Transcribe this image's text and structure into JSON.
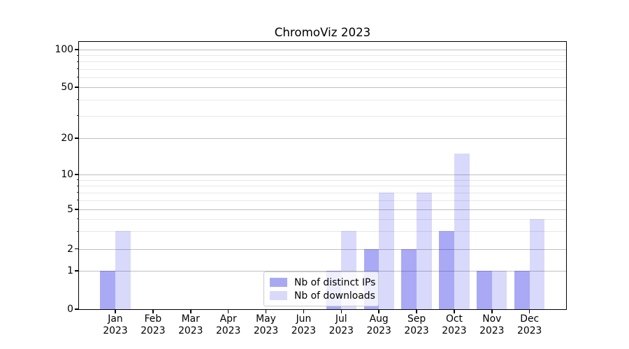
{
  "figure": {
    "title": "ChromoViz 2023",
    "background": "#ffffff"
  },
  "chart_data": {
    "type": "bar",
    "title": "ChromoViz 2023",
    "xlabel": "",
    "ylabel": "",
    "yscale": "log-like (0 shown at baseline)",
    "ylim": [
      0,
      100
    ],
    "yticks": [
      0,
      1,
      2,
      5,
      10,
      20,
      50,
      100
    ],
    "yticks_minor": [
      3,
      4,
      6,
      7,
      8,
      9,
      30,
      40,
      60,
      70,
      80,
      90
    ],
    "grid": "horizontal major and minor gridlines",
    "legend_position": "lower center",
    "categories": [
      "Jan 2023",
      "Feb 2023",
      "Mar 2023",
      "Apr 2023",
      "May 2023",
      "Jun 2023",
      "Jul 2023",
      "Aug 2023",
      "Sep 2023",
      "Oct 2023",
      "Nov 2023",
      "Dec 2023"
    ],
    "x_tick_line1": [
      "Jan",
      "Feb",
      "Mar",
      "Apr",
      "May",
      "Jun",
      "Jul",
      "Aug",
      "Sep",
      "Oct",
      "Nov",
      "Dec"
    ],
    "x_tick_line2": [
      "2023",
      "2023",
      "2023",
      "2023",
      "2023",
      "2023",
      "2023",
      "2023",
      "2023",
      "2023",
      "2023",
      "2023"
    ],
    "series": [
      {
        "name": "Nb of distinct IPs",
        "color": "#a9a9f2",
        "fill_rgba": "rgba(10,10,230,0.35)",
        "values": [
          1,
          0,
          0,
          0,
          0,
          0,
          1,
          2,
          2,
          3,
          1,
          1
        ]
      },
      {
        "name": "Nb of downloads",
        "color": "#d9d9f9",
        "fill_rgba": "rgba(10,10,230,0.155)",
        "values": [
          3,
          0,
          0,
          0,
          0,
          0,
          3,
          7,
          7,
          15,
          1,
          4
        ]
      }
    ]
  },
  "legend": {
    "items": [
      {
        "label": "Nb of distinct IPs",
        "color": "#a9a9f2"
      },
      {
        "label": "Nb of downloads",
        "color": "#d9d9f9"
      }
    ]
  },
  "colors": {
    "spine": "#000000",
    "grid_major": "#bfbfbf",
    "grid_minor": "#e8e8e8",
    "text": "#000000",
    "legend_border": "#cccccc"
  }
}
